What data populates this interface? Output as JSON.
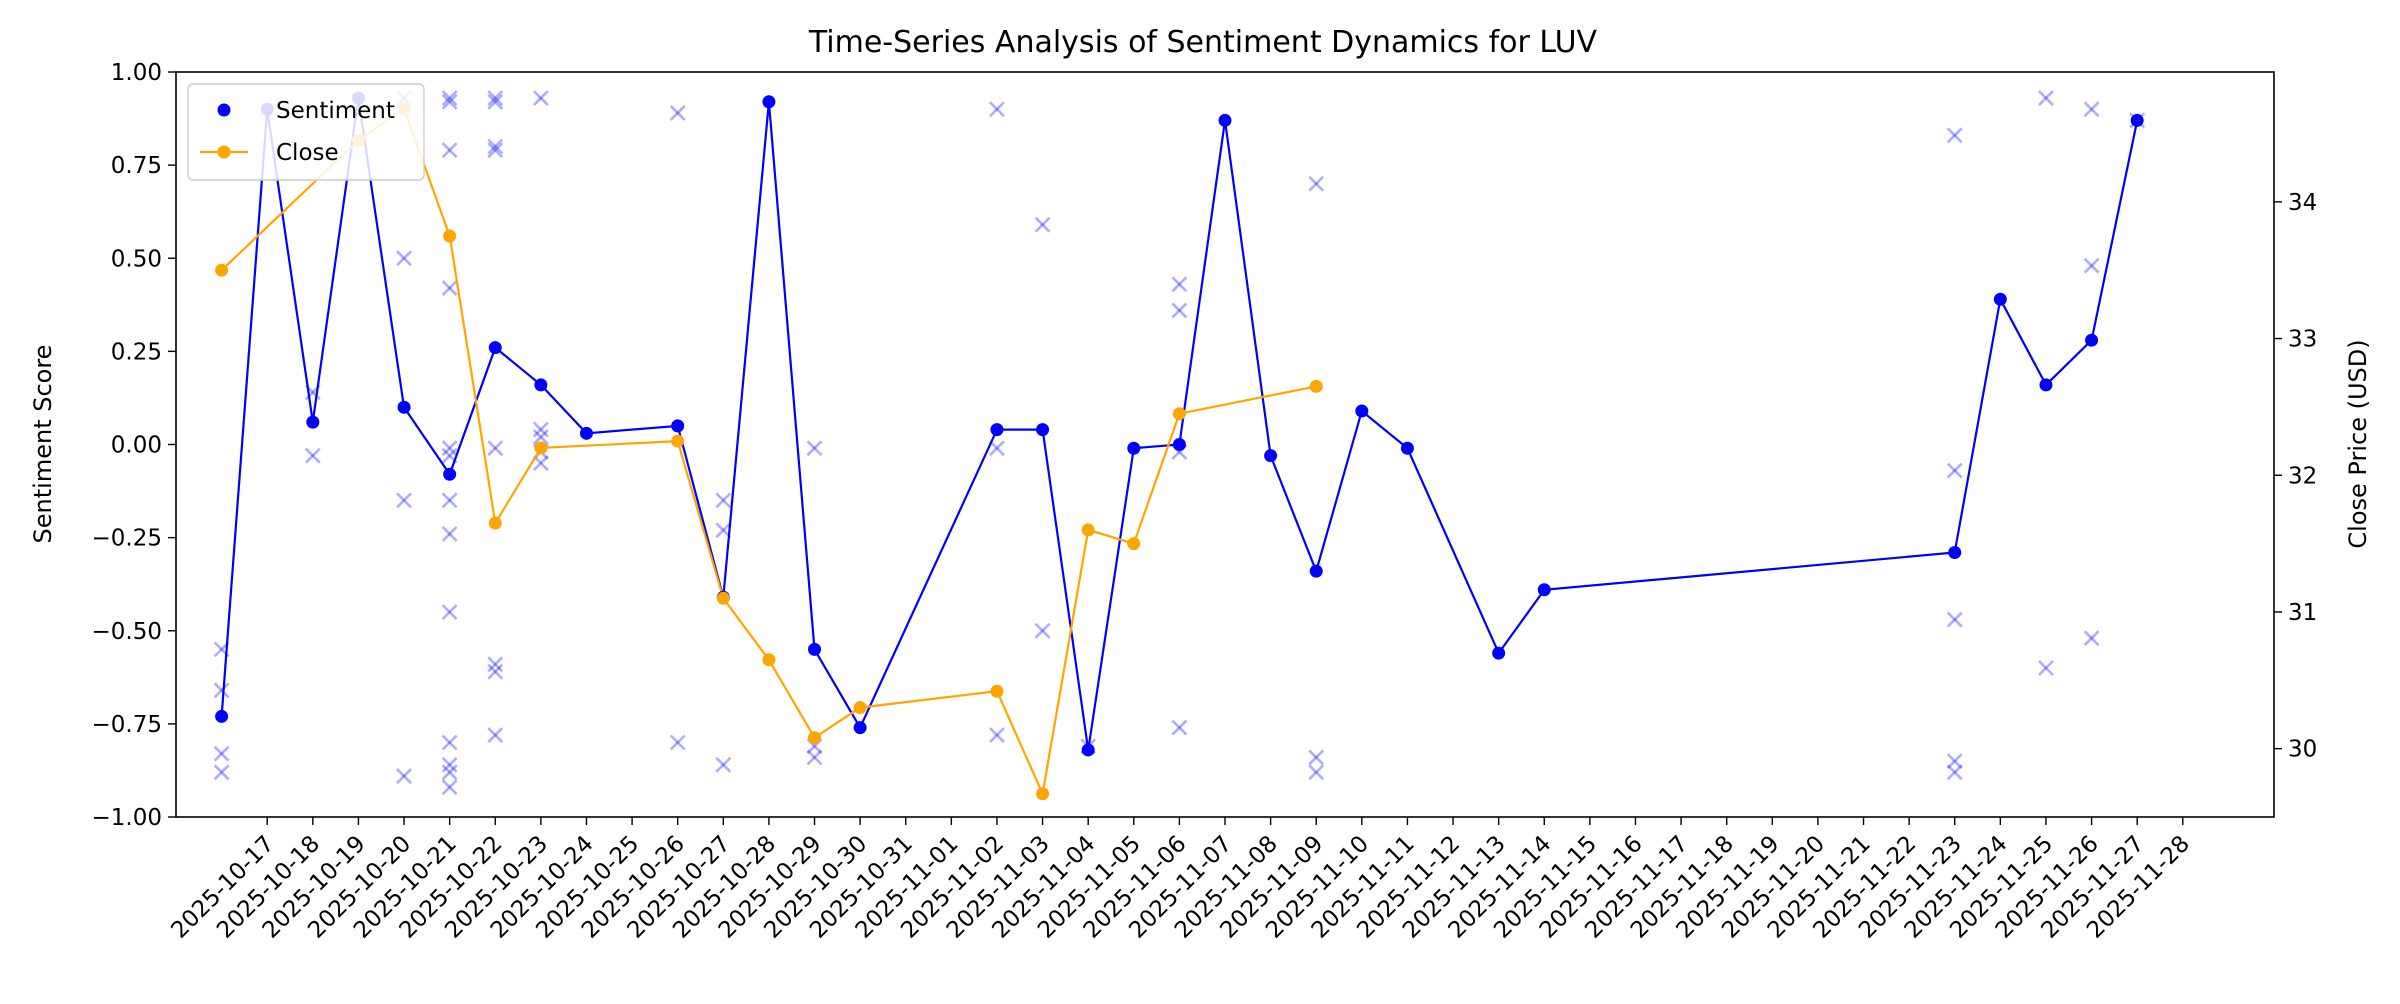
{
  "chart_data": {
    "type": "line",
    "title": "Time-Series Analysis of Sentiment Dynamics for LUV",
    "ylabel": "Sentiment Score",
    "y2label": "Close Price (USD)",
    "xlabel": "",
    "ylim": [
      -1.0,
      1.0
    ],
    "y2lim": [
      29.5,
      34.95
    ],
    "yticks": [
      -1.0,
      -0.75,
      -0.5,
      -0.25,
      0.0,
      0.25,
      0.5,
      0.75,
      1.0
    ],
    "y2ticks": [
      30,
      31,
      32,
      33,
      34
    ],
    "xlim": [
      "2025-10-15",
      "2025-11-30"
    ],
    "legend_position": "top-left",
    "grid": false,
    "dates": [
      "2025-10-17",
      "2025-10-18",
      "2025-10-19",
      "2025-10-20",
      "2025-10-21",
      "2025-10-22",
      "2025-10-23",
      "2025-10-24",
      "2025-10-25",
      "2025-10-26",
      "2025-10-27",
      "2025-10-28",
      "2025-10-29",
      "2025-10-30",
      "2025-10-31",
      "2025-11-01",
      "2025-11-02",
      "2025-11-03",
      "2025-11-04",
      "2025-11-05",
      "2025-11-06",
      "2025-11-07",
      "2025-11-08",
      "2025-11-09",
      "2025-11-10",
      "2025-11-11",
      "2025-11-12",
      "2025-11-13",
      "2025-11-14",
      "2025-11-15",
      "2025-11-16",
      "2025-11-17",
      "2025-11-18",
      "2025-11-19",
      "2025-11-20",
      "2025-11-21",
      "2025-11-22",
      "2025-11-23",
      "2025-11-24",
      "2025-11-25",
      "2025-11-26",
      "2025-11-27",
      "2025-11-28"
    ],
    "series": [
      {
        "name": "Sentiment",
        "axis": "left",
        "color": "#0000ff",
        "points": [
          [
            "2025-10-16",
            -0.73
          ],
          [
            "2025-10-17",
            0.9
          ],
          [
            "2025-10-18",
            0.06
          ],
          [
            "2025-10-19",
            0.93
          ],
          [
            "2025-10-20",
            0.1
          ],
          [
            "2025-10-21",
            -0.08
          ],
          [
            "2025-10-22",
            0.26
          ],
          [
            "2025-10-23",
            0.16
          ],
          [
            "2025-10-24",
            0.03
          ],
          [
            "2025-10-26",
            0.05
          ],
          [
            "2025-10-27",
            -0.41
          ],
          [
            "2025-10-28",
            0.92
          ],
          [
            "2025-10-29",
            -0.55
          ],
          [
            "2025-10-30",
            -0.76
          ],
          [
            "2025-11-02",
            0.04
          ],
          [
            "2025-11-03",
            0.04
          ],
          [
            "2025-11-04",
            -0.82
          ],
          [
            "2025-11-05",
            -0.01
          ],
          [
            "2025-11-06",
            0.0
          ],
          [
            "2025-11-07",
            0.87
          ],
          [
            "2025-11-08",
            -0.03
          ],
          [
            "2025-11-09",
            -0.34
          ],
          [
            "2025-11-10",
            0.09
          ],
          [
            "2025-11-11",
            -0.01
          ],
          [
            "2025-11-13",
            -0.56
          ],
          [
            "2025-11-14",
            -0.39
          ],
          [
            "2025-11-23",
            -0.29
          ],
          [
            "2025-11-24",
            0.39
          ],
          [
            "2025-11-25",
            0.16
          ],
          [
            "2025-11-26",
            0.28
          ],
          [
            "2025-11-27",
            0.87
          ]
        ]
      },
      {
        "name": "Close",
        "axis": "right",
        "color": "#ffa500",
        "points": [
          [
            "2025-10-16",
            33.5
          ],
          [
            "2025-10-19",
            34.45
          ],
          [
            "2025-10-20",
            34.68
          ],
          [
            "2025-10-21",
            33.75
          ],
          [
            "2025-10-22",
            31.65
          ],
          [
            "2025-10-23",
            32.2
          ],
          [
            "2025-10-26",
            32.25
          ],
          [
            "2025-10-27",
            31.1
          ],
          [
            "2025-10-28",
            30.65
          ],
          [
            "2025-10-29",
            30.08
          ],
          [
            "2025-10-30",
            30.3
          ],
          [
            "2025-11-02",
            30.42
          ],
          [
            "2025-11-03",
            29.67
          ],
          [
            "2025-11-04",
            31.6
          ],
          [
            "2025-11-05",
            31.5
          ],
          [
            "2025-11-06",
            32.45
          ],
          [
            "2025-11-09",
            32.65
          ]
        ]
      }
    ],
    "raw_scores": [
      [
        "2025-10-16",
        -0.55
      ],
      [
        "2025-10-16",
        -0.66
      ],
      [
        "2025-10-16",
        -0.83
      ],
      [
        "2025-10-16",
        -0.88
      ],
      [
        "2025-10-18",
        0.14
      ],
      [
        "2025-10-18",
        -0.03
      ],
      [
        "2025-10-20",
        0.93
      ],
      [
        "2025-10-20",
        0.5
      ],
      [
        "2025-10-20",
        -0.15
      ],
      [
        "2025-10-20",
        -0.89
      ],
      [
        "2025-10-21",
        0.93
      ],
      [
        "2025-10-21",
        0.92
      ],
      [
        "2025-10-21",
        0.79
      ],
      [
        "2025-10-21",
        0.42
      ],
      [
        "2025-10-21",
        -0.01
      ],
      [
        "2025-10-21",
        -0.03
      ],
      [
        "2025-10-21",
        -0.15
      ],
      [
        "2025-10-21",
        -0.24
      ],
      [
        "2025-10-21",
        -0.45
      ],
      [
        "2025-10-21",
        -0.8
      ],
      [
        "2025-10-21",
        -0.86
      ],
      [
        "2025-10-21",
        -0.88
      ],
      [
        "2025-10-21",
        -0.92
      ],
      [
        "2025-10-22",
        0.93
      ],
      [
        "2025-10-22",
        0.92
      ],
      [
        "2025-10-22",
        0.8
      ],
      [
        "2025-10-22",
        0.79
      ],
      [
        "2025-10-22",
        -0.01
      ],
      [
        "2025-10-22",
        -0.59
      ],
      [
        "2025-10-22",
        -0.61
      ],
      [
        "2025-10-22",
        -0.78
      ],
      [
        "2025-10-23",
        0.93
      ],
      [
        "2025-10-23",
        0.04
      ],
      [
        "2025-10-23",
        0.02
      ],
      [
        "2025-10-23",
        -0.02
      ],
      [
        "2025-10-23",
        -0.05
      ],
      [
        "2025-10-26",
        0.89
      ],
      [
        "2025-10-26",
        -0.8
      ],
      [
        "2025-10-27",
        -0.15
      ],
      [
        "2025-10-27",
        -0.23
      ],
      [
        "2025-10-27",
        -0.86
      ],
      [
        "2025-10-29",
        -0.01
      ],
      [
        "2025-10-29",
        -0.81
      ],
      [
        "2025-10-29",
        -0.84
      ],
      [
        "2025-11-02",
        0.9
      ],
      [
        "2025-11-02",
        -0.01
      ],
      [
        "2025-11-02",
        -0.78
      ],
      [
        "2025-11-03",
        0.59
      ],
      [
        "2025-11-03",
        -0.5
      ],
      [
        "2025-11-04",
        -0.81
      ],
      [
        "2025-11-06",
        0.43
      ],
      [
        "2025-11-06",
        0.36
      ],
      [
        "2025-11-06",
        -0.02
      ],
      [
        "2025-11-06",
        -0.76
      ],
      [
        "2025-11-09",
        0.7
      ],
      [
        "2025-11-09",
        -0.84
      ],
      [
        "2025-11-09",
        -0.88
      ],
      [
        "2025-11-23",
        0.83
      ],
      [
        "2025-11-23",
        -0.07
      ],
      [
        "2025-11-23",
        -0.47
      ],
      [
        "2025-11-23",
        -0.85
      ],
      [
        "2025-11-23",
        -0.88
      ],
      [
        "2025-11-25",
        0.93
      ],
      [
        "2025-11-25",
        -0.6
      ],
      [
        "2025-11-26",
        0.9
      ],
      [
        "2025-11-26",
        0.48
      ],
      [
        "2025-11-26",
        -0.52
      ],
      [
        "2025-11-27",
        0.87
      ]
    ]
  }
}
